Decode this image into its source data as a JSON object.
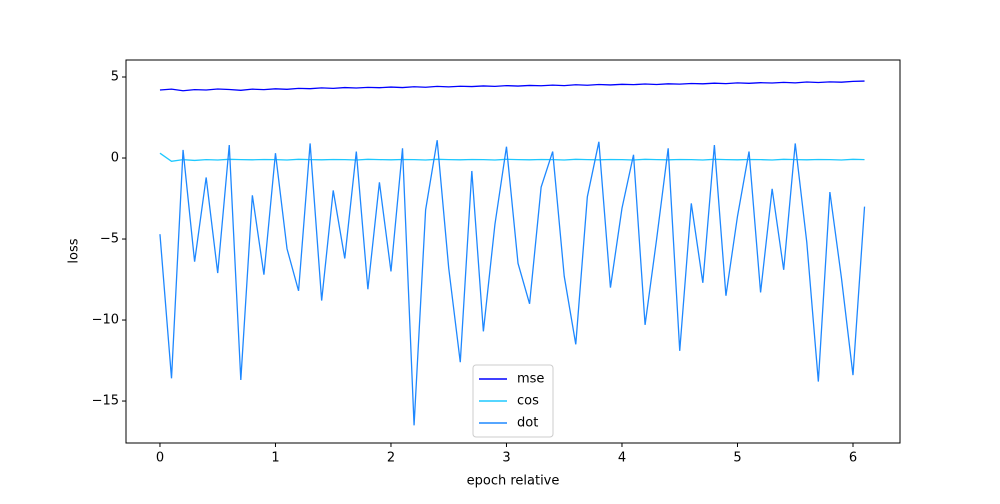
{
  "chart_data": {
    "type": "line",
    "xlabel": "epoch relative",
    "ylabel": "loss",
    "x": [
      0,
      0.1,
      0.2,
      0.3,
      0.4,
      0.5,
      0.6,
      0.7,
      0.8,
      0.9,
      1.0,
      1.1,
      1.2,
      1.3,
      1.4,
      1.5,
      1.6,
      1.7,
      1.8,
      1.9,
      2.0,
      2.1,
      2.2,
      2.3,
      2.4,
      2.5,
      2.6,
      2.7,
      2.8,
      2.9,
      3.0,
      3.1,
      3.2,
      3.3,
      3.4,
      3.5,
      3.6,
      3.7,
      3.8,
      3.9,
      4.0,
      4.1,
      4.2,
      4.3,
      4.4,
      4.5,
      4.6,
      4.7,
      4.8,
      4.9,
      5.0,
      5.1,
      5.2,
      5.3,
      5.4,
      5.5,
      5.6,
      5.7,
      5.8,
      5.9,
      6.0,
      6.1
    ],
    "series": [
      {
        "name": "mse",
        "color": "#0000ff",
        "values": [
          4.2,
          4.25,
          4.15,
          4.22,
          4.2,
          4.26,
          4.23,
          4.18,
          4.25,
          4.22,
          4.27,
          4.24,
          4.3,
          4.28,
          4.33,
          4.3,
          4.35,
          4.32,
          4.36,
          4.34,
          4.38,
          4.35,
          4.4,
          4.37,
          4.42,
          4.39,
          4.43,
          4.41,
          4.45,
          4.42,
          4.47,
          4.44,
          4.48,
          4.46,
          4.5,
          4.47,
          4.52,
          4.49,
          4.54,
          4.51,
          4.55,
          4.53,
          4.57,
          4.54,
          4.58,
          4.56,
          4.6,
          4.58,
          4.62,
          4.59,
          4.64,
          4.61,
          4.65,
          4.63,
          4.67,
          4.64,
          4.69,
          4.66,
          4.7,
          4.68,
          4.73,
          4.75
        ]
      },
      {
        "name": "cos",
        "color": "#1ec8ff",
        "values": [
          0.3,
          -0.2,
          -0.1,
          -0.15,
          -0.1,
          -0.12,
          -0.08,
          -0.1,
          -0.11,
          -0.09,
          -0.1,
          -0.12,
          -0.08,
          -0.1,
          -0.11,
          -0.09,
          -0.1,
          -0.12,
          -0.08,
          -0.1,
          -0.11,
          -0.09,
          -0.1,
          -0.12,
          -0.08,
          -0.1,
          -0.11,
          -0.09,
          -0.1,
          -0.12,
          -0.08,
          -0.1,
          -0.11,
          -0.09,
          -0.1,
          -0.12,
          -0.08,
          -0.1,
          -0.11,
          -0.09,
          -0.1,
          -0.12,
          -0.08,
          -0.1,
          -0.11,
          -0.09,
          -0.1,
          -0.12,
          -0.08,
          -0.1,
          -0.11,
          -0.09,
          -0.1,
          -0.12,
          -0.08,
          -0.1,
          -0.11,
          -0.09,
          -0.1,
          -0.12,
          -0.08,
          -0.1
        ]
      },
      {
        "name": "dot",
        "color": "#1e88ff",
        "values": [
          -4.7,
          -13.6,
          0.5,
          -6.4,
          -1.2,
          -7.1,
          0.8,
          -13.7,
          -2.3,
          -7.2,
          0.3,
          -5.6,
          -8.2,
          0.9,
          -8.8,
          -2.0,
          -6.2,
          0.4,
          -8.1,
          -1.5,
          -7.0,
          0.6,
          -16.5,
          -3.2,
          1.1,
          -6.8,
          -12.6,
          -0.8,
          -10.7,
          -4.1,
          0.7,
          -6.5,
          -9.0,
          -1.8,
          0.4,
          -7.3,
          -11.5,
          -2.4,
          1.0,
          -8.0,
          -3.1,
          0.2,
          -10.3,
          -5.0,
          0.6,
          -11.9,
          -2.8,
          -7.7,
          0.8,
          -8.5,
          -3.6,
          0.4,
          -8.3,
          -1.9,
          -6.9,
          0.9,
          -5.2,
          -13.8,
          -2.1,
          -7.4,
          -13.4,
          -3.0
        ]
      }
    ],
    "xlim": [
      -0.294,
      6.407
    ],
    "xticks": [
      0,
      1,
      2,
      3,
      4,
      5,
      6
    ],
    "ylim": [
      -17.59,
      6.05
    ],
    "yticks": [
      5,
      0,
      {
        "value": -5,
        "label": "−5"
      },
      {
        "value": -10,
        "label": "−10"
      },
      {
        "value": -15,
        "label": "−15"
      }
    ],
    "legend": "lower center"
  }
}
